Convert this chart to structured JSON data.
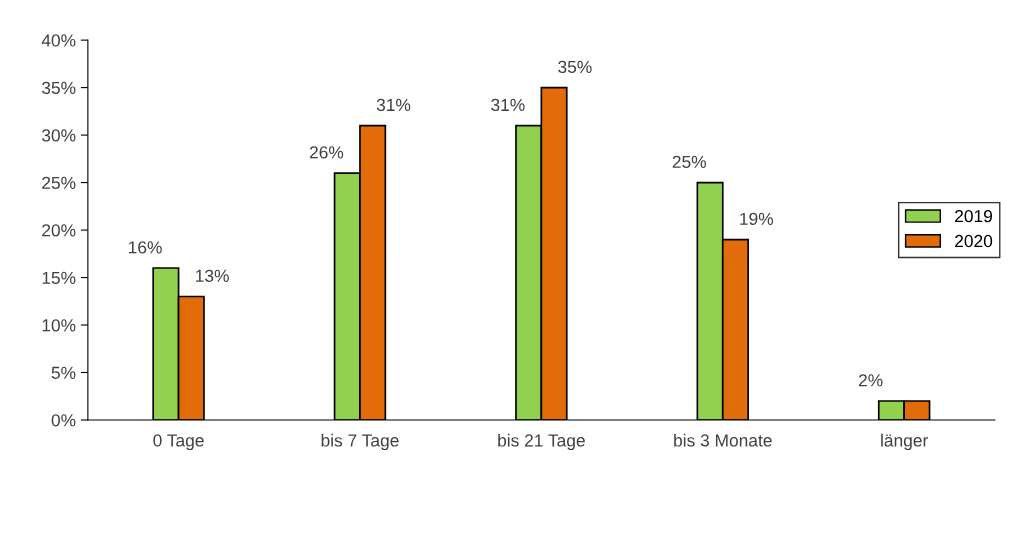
{
  "chart_data": {
    "type": "bar",
    "categories": [
      "0 Tage",
      "bis 7 Tage",
      "bis 21 Tage",
      "bis 3 Monate",
      "länger"
    ],
    "series": [
      {
        "name": "2019",
        "color": "#92d050",
        "values": [
          16,
          26,
          31,
          25,
          2
        ],
        "value_labels": [
          "16%",
          "26%",
          "31%",
          "25%",
          "2%"
        ]
      },
      {
        "name": "2020",
        "color": "#e36c0a",
        "values": [
          13,
          31,
          35,
          19,
          2
        ],
        "value_labels": [
          "13%",
          "31%",
          "35%",
          "19%",
          null
        ]
      }
    ],
    "ylim": [
      0,
      40
    ],
    "yticks": [
      {
        "value": 0,
        "label": "0%"
      },
      {
        "value": 5,
        "label": "5%"
      },
      {
        "value": 10,
        "label": "10%"
      },
      {
        "value": 15,
        "label": "15%"
      },
      {
        "value": 20,
        "label": "20%"
      },
      {
        "value": 25,
        "label": "25%"
      },
      {
        "value": 30,
        "label": "30%"
      },
      {
        "value": 35,
        "label": "35%"
      },
      {
        "value": 40,
        "label": "40%"
      }
    ],
    "grid": false,
    "legend": "right"
  }
}
